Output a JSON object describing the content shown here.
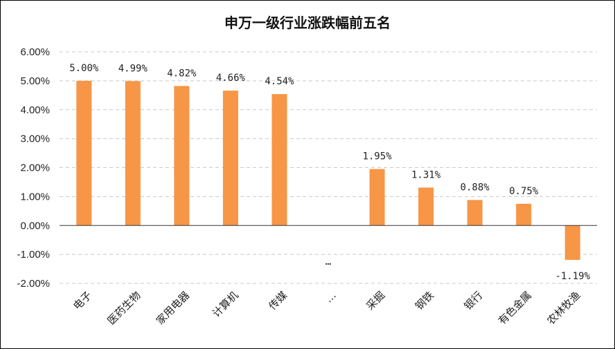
{
  "chart_data": {
    "type": "bar",
    "title": "申万一级行业涨跌幅前五名",
    "categories": [
      "电子",
      "医药生物",
      "家用电器",
      "计算机",
      "传媒",
      "…",
      "采掘",
      "钢铁",
      "银行",
      "有色金属",
      "农林牧渔"
    ],
    "values": [
      5.0,
      4.99,
      4.82,
      4.66,
      4.54,
      null,
      1.95,
      1.31,
      0.88,
      0.75,
      -1.19
    ],
    "data_labels": [
      "5.00%",
      "4.99%",
      "4.82%",
      "4.66%",
      "4.54%",
      "…",
      "1.95%",
      "1.31%",
      "0.88%",
      "0.75%",
      "-1.19%"
    ],
    "yticks": [
      "-2.00%",
      "-1.00%",
      "0.00%",
      "1.00%",
      "2.00%",
      "3.00%",
      "4.00%",
      "5.00%",
      "6.00%"
    ],
    "ylim": [
      -2,
      6
    ],
    "grid": true,
    "legend": "none",
    "bar_color": "#F79646"
  }
}
